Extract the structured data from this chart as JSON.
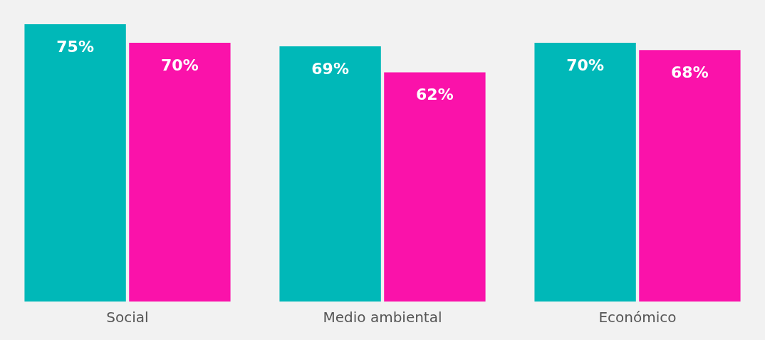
{
  "chart_data": {
    "type": "bar",
    "categories": [
      "Social",
      "Medio ambiental",
      "Económico"
    ],
    "series": [
      {
        "color": "#00b8b8",
        "values": [
          75,
          69,
          70
        ],
        "value_labels": [
          "75%",
          "69%",
          "70%"
        ]
      },
      {
        "color": "#fa12aa",
        "values": [
          70,
          62,
          68
        ],
        "value_labels": [
          "70%",
          "62%",
          "68%"
        ]
      }
    ],
    "grid": false,
    "legend": false,
    "tick_labels": "x"
  }
}
